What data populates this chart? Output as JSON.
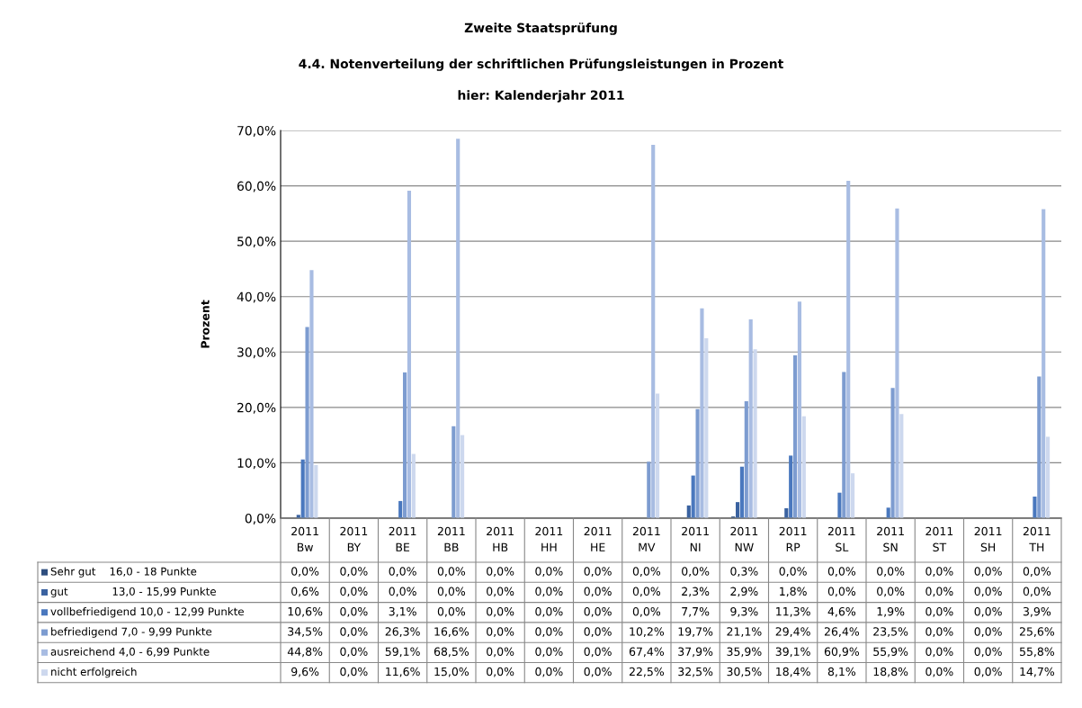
{
  "chart_data": {
    "type": "bar",
    "title": "Zweite Staatsprüfung",
    "subtitle": "4.4. Notenverteilung der schriftlichen Prüfungsleistungen in Prozent",
    "annotations": [
      "hier: Kalenderjahr 2011"
    ],
    "ylabel": "Prozent",
    "categories": [
      "2011\nBw",
      "2011\nBY",
      "2011\nBE",
      "2011\nBB",
      "2011\nHB",
      "2011\nHH",
      "2011\nHE",
      "2011\nMV",
      "2011\nNI",
      "2011\nNW",
      "2011\nRP",
      "2011\nSL",
      "2011\nSN",
      "2011\nST",
      "2011\nSH",
      "2011\nTH"
    ],
    "series": [
      {
        "name": "Sehr gut    16,0 - 18 Punkte",
        "color": "#2e4e7e",
        "values": [
          0.0,
          0.0,
          0.0,
          0.0,
          0.0,
          0.0,
          0.0,
          0.0,
          0.0,
          0.3,
          0.0,
          0.0,
          0.0,
          0.0,
          0.0,
          0.0
        ],
        "value_labels": [
          "0,0%",
          "0,0%",
          "0,0%",
          "0,0%",
          "0,0%",
          "0,0%",
          "0,0%",
          "0,0%",
          "0,0%",
          "0,3%",
          "0,0%",
          "0,0%",
          "0,0%",
          "0,0%",
          "0,0%",
          "0,0%"
        ]
      },
      {
        "name": "gut             13,0 - 15,99 Punkte",
        "color": "#3a62a0",
        "values": [
          0.6,
          0.0,
          0.0,
          0.0,
          0.0,
          0.0,
          0.0,
          0.0,
          2.3,
          2.9,
          1.8,
          0.0,
          0.0,
          0.0,
          0.0,
          0.0
        ],
        "value_labels": [
          "0,6%",
          "0,0%",
          "0,0%",
          "0,0%",
          "0,0%",
          "0,0%",
          "0,0%",
          "0,0%",
          "2,3%",
          "2,9%",
          "1,8%",
          "0,0%",
          "0,0%",
          "0,0%",
          "0,0%",
          "0,0%"
        ]
      },
      {
        "name": "vollbefriedigend 10,0 - 12,99 Punkte",
        "color": "#4a78be",
        "values": [
          10.6,
          0.0,
          3.1,
          0.0,
          0.0,
          0.0,
          0.0,
          0.0,
          7.7,
          9.3,
          11.3,
          4.6,
          1.9,
          0.0,
          0.0,
          3.9
        ],
        "value_labels": [
          "10,6%",
          "0,0%",
          "3,1%",
          "0,0%",
          "0,0%",
          "0,0%",
          "0,0%",
          "0,0%",
          "7,7%",
          "9,3%",
          "11,3%",
          "4,6%",
          "1,9%",
          "0,0%",
          "0,0%",
          "3,9%"
        ]
      },
      {
        "name": "befriedigend 7,0 - 9,99 Punkte",
        "color": "#7d9cd0",
        "values": [
          34.5,
          0.0,
          26.3,
          16.6,
          0.0,
          0.0,
          0.0,
          10.2,
          19.7,
          21.1,
          29.4,
          26.4,
          23.5,
          0.0,
          0.0,
          25.6
        ],
        "value_labels": [
          "34,5%",
          "0,0%",
          "26,3%",
          "16,6%",
          "0,0%",
          "0,0%",
          "0,0%",
          "10,2%",
          "19,7%",
          "21,1%",
          "29,4%",
          "26,4%",
          "23,5%",
          "0,0%",
          "0,0%",
          "25,6%"
        ]
      },
      {
        "name": "ausreichend 4,0 - 6,99 Punkte",
        "color": "#a8bce2",
        "values": [
          44.8,
          0.0,
          59.1,
          68.5,
          0.0,
          0.0,
          0.0,
          67.4,
          37.9,
          35.9,
          39.1,
          60.9,
          55.9,
          0.0,
          0.0,
          55.8
        ],
        "value_labels": [
          "44,8%",
          "0,0%",
          "59,1%",
          "68,5%",
          "0,0%",
          "0,0%",
          "0,0%",
          "67,4%",
          "37,9%",
          "35,9%",
          "39,1%",
          "60,9%",
          "55,9%",
          "0,0%",
          "0,0%",
          "55,8%"
        ]
      },
      {
        "name": "nicht erfolgreich",
        "color": "#cdd8ee",
        "values": [
          9.6,
          0.0,
          11.6,
          15.0,
          0.0,
          0.0,
          0.0,
          22.5,
          32.5,
          30.5,
          18.4,
          8.1,
          18.8,
          0.0,
          0.0,
          14.7
        ],
        "value_labels": [
          "9,6%",
          "0,0%",
          "11,6%",
          "15,0%",
          "0,0%",
          "0,0%",
          "0,0%",
          "22,5%",
          "32,5%",
          "30,5%",
          "18,4%",
          "8,1%",
          "18,8%",
          "0,0%",
          "0,0%",
          "14,7%"
        ]
      }
    ],
    "ylim": [
      0,
      70
    ],
    "yticks": [
      {
        "value": 0,
        "label": "0,0%"
      },
      {
        "value": 10,
        "label": "10,0%"
      },
      {
        "value": 20,
        "label": "20,0%"
      },
      {
        "value": 30,
        "label": "30,0%"
      },
      {
        "value": 40,
        "label": "40,0%"
      },
      {
        "value": 50,
        "label": "50,0%"
      },
      {
        "value": 60,
        "label": "60,0%"
      },
      {
        "value": 70,
        "label": "70,0%"
      }
    ],
    "grid": "y",
    "legend": "bottom left"
  }
}
